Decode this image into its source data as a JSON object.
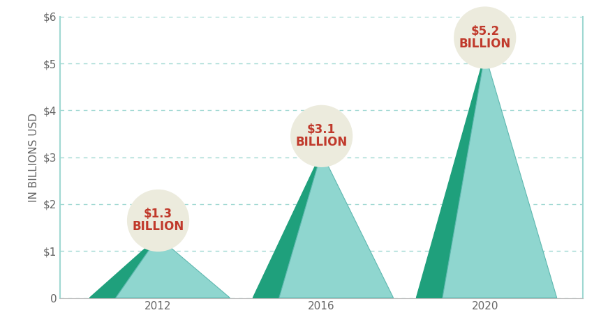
{
  "chart_data": {
    "type": "bar",
    "y_label": "IN BILLIONS USD",
    "categories": [
      "2012",
      "2016",
      "2020"
    ],
    "values": [
      1.3,
      3.1,
      5.2
    ],
    "value_labels": [
      "$1.3\nBILLION",
      "$3.1\nBILLION",
      "$5.2\nBILLION"
    ],
    "color": "#8fd6cf",
    "ylim": [
      0,
      6
    ],
    "yticks": [
      0,
      {
        "value": 1,
        "label": "$1"
      },
      {
        "value": 2,
        "label": "$2"
      },
      {
        "value": 3,
        "label": "$3"
      },
      {
        "value": 4,
        "label": "$4"
      },
      {
        "value": 5,
        "label": "$5"
      },
      {
        "value": 6,
        "label": "$6"
      }
    ],
    "grid": true,
    "data_labels": true
  }
}
